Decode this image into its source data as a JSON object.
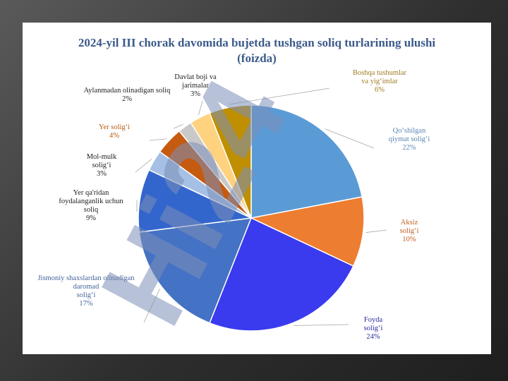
{
  "chart_data": {
    "type": "pie",
    "title_line1": "2024-yil III chorak davomida bujetda tushgan soliq turlarining ulushi",
    "title_line2": "(foizda)",
    "slices": [
      {
        "label": "Qo‘shilgan qiymat solig‘i",
        "value": 22,
        "color": "#5b9bd5",
        "label_color": "#5a86b4"
      },
      {
        "label": "Aksiz solig‘i",
        "value": 10,
        "color": "#ed7d31",
        "label_color": "#c06020"
      },
      {
        "label": "Foyda solig‘i",
        "value": 24,
        "color": "#3a3aee",
        "label_color": "#2a2aa0"
      },
      {
        "label": "Jismoniy shaxslardan olinadigan daromad solig‘i",
        "value": 17,
        "color": "#4472c4",
        "label_color": "#44649a"
      },
      {
        "label": "Yer qa'ridan foydalanganlik uchun soliq",
        "value": 9,
        "color": "#3366cc",
        "label_color": "#222222"
      },
      {
        "label": "Mol-mulk solig‘i",
        "value": 3,
        "color": "#a5c0e4",
        "label_color": "#222222"
      },
      {
        "label": "Yer solig‘i",
        "value": 4,
        "color": "#c55a11",
        "label_color": "#b85a10"
      },
      {
        "label": "Aylanmadan olinadigan soliq",
        "value": 2,
        "color": "#c9c9c9",
        "label_color": "#222222"
      },
      {
        "label": "Davlat boji va jarimalar",
        "value": 3,
        "color": "#ffd27f",
        "label_color": "#222222"
      },
      {
        "label": "Boshqa tushumlar va yig‘imlar",
        "value": 6,
        "color": "#bf8f00",
        "label_color": "#a07a20"
      }
    ],
    "watermark": "Hi24"
  }
}
